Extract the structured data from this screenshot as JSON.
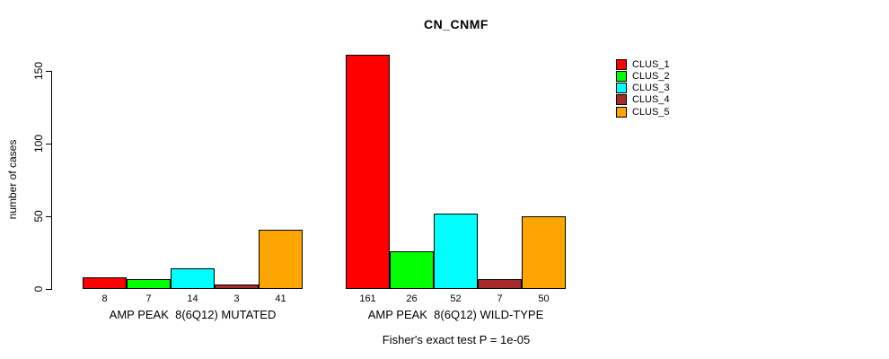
{
  "chart_data": {
    "type": "bar",
    "title": "CN_CNMF",
    "ylabel": "number of cases",
    "xlabel": "",
    "ylim": [
      0,
      150
    ],
    "yticks": [
      "0",
      "50",
      "100",
      "150"
    ],
    "ytick_values": [
      0,
      50,
      100,
      150
    ],
    "grid": "off",
    "legend_position": "top-right",
    "series_labels": [
      "CLUS_1",
      "CLUS_2",
      "CLUS_3",
      "CLUS_4",
      "CLUS_5"
    ],
    "series_colors": [
      "#FF0000",
      "#00FF00",
      "#00FFFF",
      "#A52A2A",
      "#FFA500"
    ],
    "groups": [
      {
        "label": "AMP PEAK  8(6Q12) MUTATED",
        "values": [
          8,
          7,
          14,
          3,
          41
        ],
        "value_labels": [
          "8",
          "7",
          "14",
          "3",
          "41"
        ]
      },
      {
        "label": "AMP PEAK  8(6Q12) WILD-TYPE",
        "values": [
          161,
          26,
          52,
          7,
          50
        ],
        "value_labels": [
          "161",
          "26",
          "52",
          "7",
          "50"
        ]
      }
    ],
    "annotation": "Fisher's exact test P = 1e-05"
  },
  "legend": {
    "items": [
      {
        "label": "CLUS_1",
        "color": "#FF0000"
      },
      {
        "label": "CLUS_2",
        "color": "#00FF00"
      },
      {
        "label": "CLUS_3",
        "color": "#00FFFF"
      },
      {
        "label": "CLUS_4",
        "color": "#A52A2A"
      },
      {
        "label": "CLUS_5",
        "color": "#FFA500"
      }
    ]
  }
}
